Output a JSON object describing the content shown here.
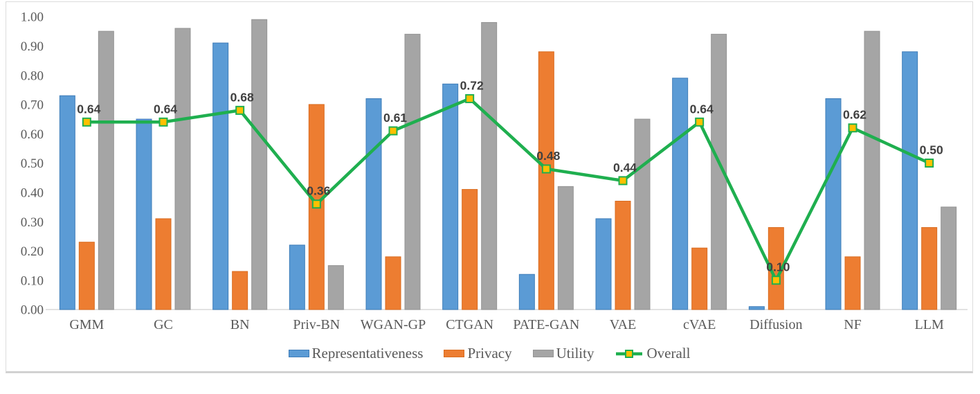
{
  "chart_data": {
    "type": "bar+line combo",
    "title": "",
    "xlabel": "",
    "ylabel": "",
    "ylim": [
      0,
      1
    ],
    "grid": false,
    "legend_position": "bottom",
    "y_ticks": [
      "1.00",
      "0.90",
      "0.80",
      "0.70",
      "0.60",
      "0.50",
      "0.40",
      "0.30",
      "0.20",
      "0.10",
      "0.00"
    ],
    "categories": [
      "GMM",
      "GC",
      "BN",
      "Priv-BN",
      "WGAN-GP",
      "CTGAN",
      "PATE-GAN",
      "VAE",
      "cVAE",
      "Diffusion",
      "NF",
      "LLM"
    ],
    "series": [
      {
        "name": "Representativeness",
        "type": "bar",
        "color": "#5B9BD5",
        "border": "#3E7CB8",
        "values": [
          0.73,
          0.65,
          0.91,
          0.22,
          0.72,
          0.77,
          0.12,
          0.31,
          0.79,
          0.01,
          0.72,
          0.88
        ]
      },
      {
        "name": "Privacy",
        "type": "bar",
        "color": "#ED7D31",
        "border": "#D96C20",
        "values": [
          0.23,
          0.31,
          0.13,
          0.7,
          0.18,
          0.41,
          0.88,
          0.37,
          0.21,
          0.28,
          0.18,
          0.28
        ]
      },
      {
        "name": "Utility",
        "type": "bar",
        "color": "#A5A5A5",
        "border": "#949494",
        "values": [
          0.95,
          0.96,
          0.99,
          0.15,
          0.94,
          0.98,
          0.42,
          0.65,
          0.94,
          0.0,
          0.95,
          0.35
        ]
      },
      {
        "name": "Overall",
        "type": "line",
        "color": "#1FAF4F",
        "marker_fill": "#FFC000",
        "values": [
          0.64,
          0.64,
          0.68,
          0.36,
          0.61,
          0.72,
          0.48,
          0.44,
          0.64,
          0.1,
          0.62,
          0.5
        ],
        "labels": [
          "0.64",
          "0.64",
          "0.68",
          "0.36",
          "0.61",
          "0.72",
          "0.48",
          "0.44",
          "0.64",
          "0.10",
          "0.62",
          "0.50"
        ]
      }
    ],
    "axis_color": "#d9d9d9",
    "tick_text_color": "#595959",
    "data_label_color": "#404040"
  }
}
